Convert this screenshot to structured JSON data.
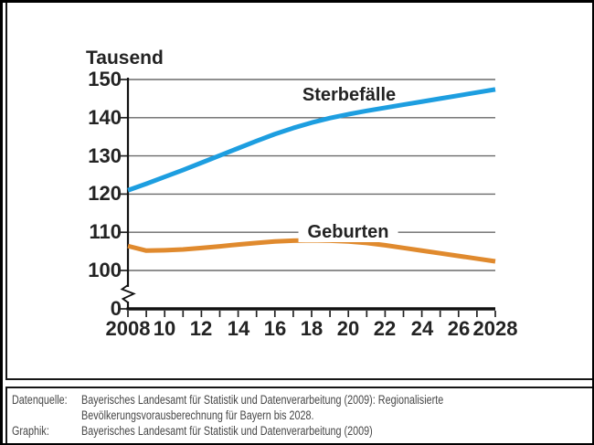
{
  "chart": {
    "unit_label": "Tausend",
    "y_tick_labels": [
      "150",
      "140",
      "130",
      "120",
      "110",
      "100",
      "0"
    ],
    "x_tick_labels": [
      "2008",
      "10",
      "12",
      "14",
      "16",
      "18",
      "20",
      "22",
      "24",
      "26",
      "2028"
    ]
  },
  "chart_data": {
    "type": "line",
    "title": "",
    "ylabel": "Tausend",
    "xlabel": "",
    "x": [
      2008,
      2009,
      2010,
      2011,
      2012,
      2013,
      2014,
      2015,
      2016,
      2017,
      2018,
      2019,
      2020,
      2021,
      2022,
      2023,
      2024,
      2025,
      2026,
      2027,
      2028
    ],
    "series": [
      {
        "name": "Sterbefälle",
        "color": "#1D9EE0",
        "values": [
          121.0,
          122.7,
          124.5,
          126.3,
          128.2,
          130.1,
          132.0,
          133.9,
          135.7,
          137.3,
          138.7,
          139.9,
          140.9,
          141.8,
          142.6,
          143.4,
          144.2,
          145.0,
          145.8,
          146.6,
          147.4
        ]
      },
      {
        "name": "Geburten",
        "color": "#E08A2E",
        "values": [
          106.4,
          105.2,
          105.3,
          105.5,
          105.9,
          106.3,
          106.8,
          107.2,
          107.6,
          107.8,
          107.9,
          107.8,
          107.6,
          107.2,
          106.6,
          105.9,
          105.2,
          104.5,
          103.8,
          103.1,
          102.4
        ]
      }
    ],
    "y_gridlines": [
      100,
      110,
      120,
      130,
      140,
      150
    ],
    "y_axis": {
      "ticks": [
        0,
        100,
        110,
        120,
        130,
        140,
        150
      ],
      "unit": "Tausend",
      "axis_break_between_0_and_100": true
    },
    "xlim": [
      2008,
      2028
    ],
    "ylim": [
      0,
      150
    ],
    "grid": "horizontal",
    "legend_position": "inline-labels-on-chart"
  },
  "source_panel": {
    "rows": [
      {
        "label": "Datenquelle:",
        "lines": [
          "Bayerisches Landesamt für Statistik und Datenverarbeitung (2009): Regionalisierte",
          "Bevölkerungsvorausberechnung für Bayern bis 2028."
        ]
      },
      {
        "label": "Graphik:",
        "lines": [
          "Bayerisches Landesamt für Statistik und Datenverarbeitung (2009)"
        ]
      }
    ]
  }
}
